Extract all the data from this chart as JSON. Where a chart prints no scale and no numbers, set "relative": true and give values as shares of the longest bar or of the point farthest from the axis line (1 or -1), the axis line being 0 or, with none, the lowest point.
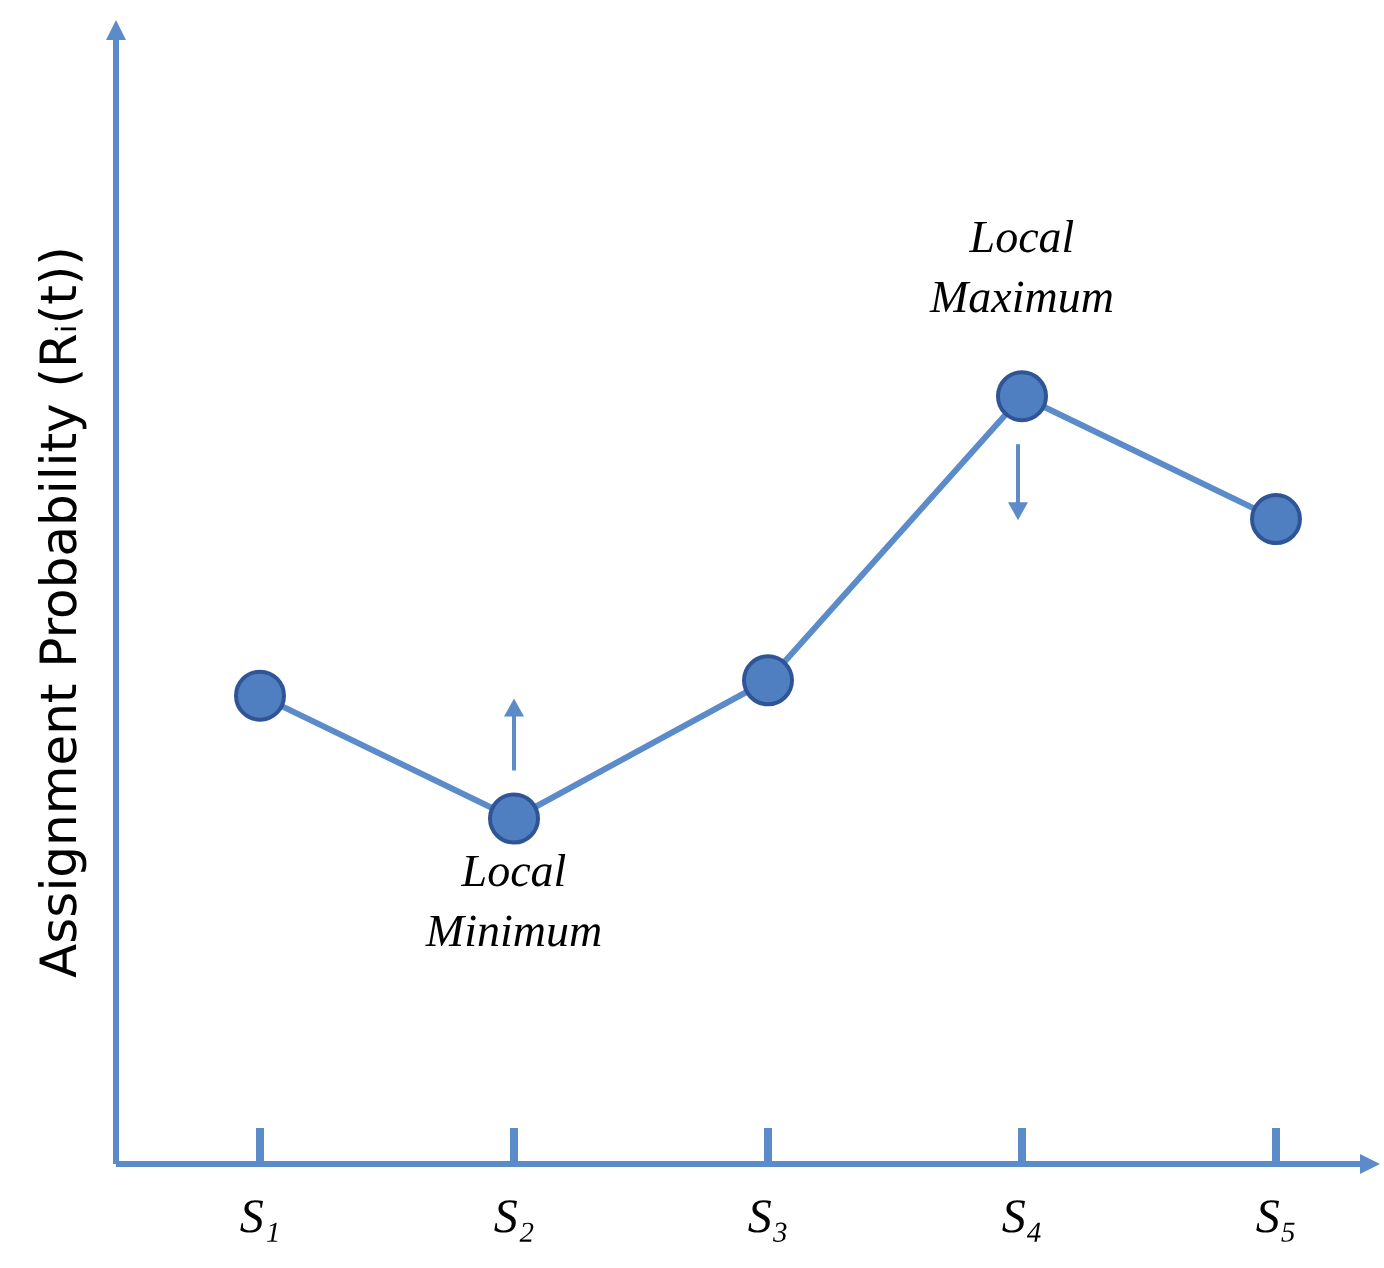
{
  "chart_data": {
    "type": "line",
    "relative": true,
    "ylabel": "Assignment Probability (Rᵢ(t))",
    "categories": [
      "S₁",
      "S₂",
      "S₃",
      "S₄",
      "S₅"
    ],
    "series": [
      {
        "color": "#4f7fc0",
        "marker": "circle",
        "values": [
          0.61,
          0.45,
          0.63,
          1.0,
          0.84
        ]
      }
    ],
    "annotations": [
      {
        "text": "Local Minimum",
        "x": "S₂",
        "y": 0.45
      },
      {
        "text": "Local Maximum",
        "x": "S₄",
        "y": 1.0
      }
    ]
  }
}
